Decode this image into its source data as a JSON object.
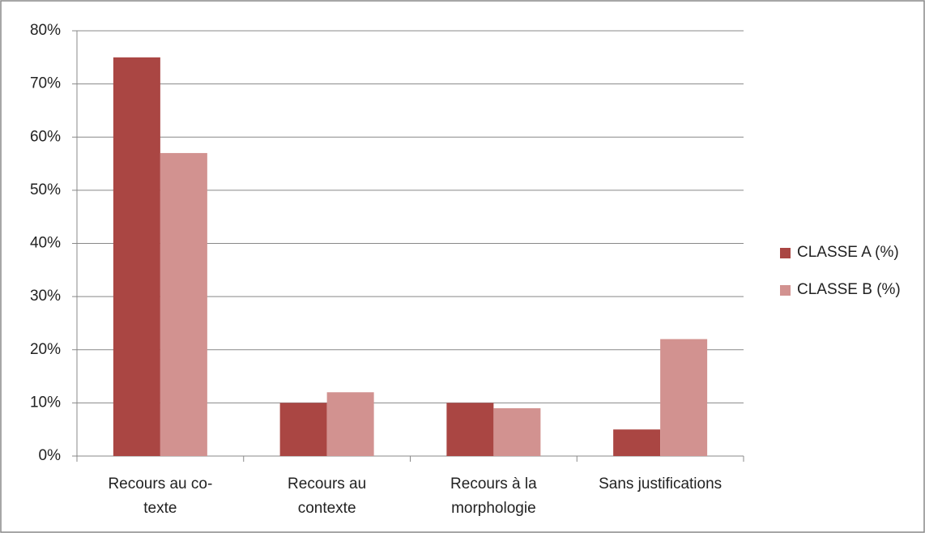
{
  "chart_data": {
    "type": "bar",
    "categories": [
      "Recours au co-texte",
      "Recours au contexte",
      "Recours à la morphologie",
      "Sans justifications"
    ],
    "series": [
      {
        "name": "CLASSE A (%)",
        "color": "#aa4643",
        "values": [
          75,
          10,
          10,
          5
        ]
      },
      {
        "name": "CLASSE B (%)",
        "color": "#d29290",
        "values": [
          57,
          12,
          9,
          22
        ]
      }
    ],
    "ylim": [
      0,
      80
    ],
    "yticks": [
      {
        "value": 0,
        "label": "0%"
      },
      {
        "value": 10,
        "label": "10%"
      },
      {
        "value": 20,
        "label": "20%"
      },
      {
        "value": 30,
        "label": "30%"
      },
      {
        "value": 40,
        "label": "40%"
      },
      {
        "value": 50,
        "label": "50%"
      },
      {
        "value": 60,
        "label": "60%"
      },
      {
        "value": 70,
        "label": "70%"
      },
      {
        "value": 80,
        "label": "80%"
      }
    ],
    "grid": true,
    "legend": "right"
  }
}
